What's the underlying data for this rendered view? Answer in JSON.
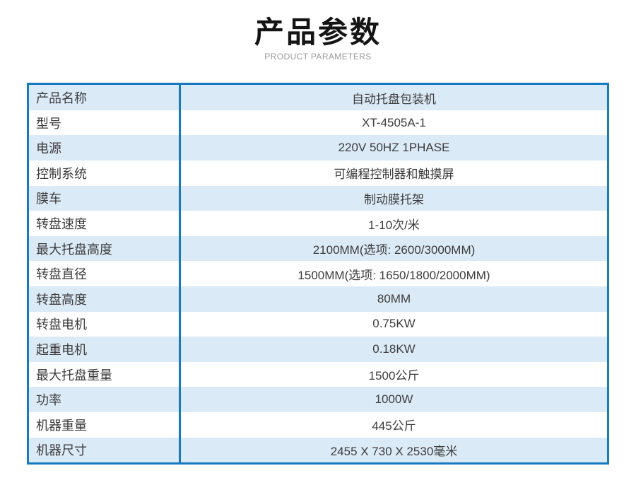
{
  "header": {
    "title": "产品参数",
    "subtitle": "PRODUCT PARAMETERS"
  },
  "table": {
    "rows": [
      {
        "label": "产品名称",
        "value": "自动托盘包装机"
      },
      {
        "label": "型号",
        "value": "XT-4505A-1"
      },
      {
        "label": "电源",
        "value": "220V 50HZ 1PHASE"
      },
      {
        "label": "控制系统",
        "value": "可编程控制器和触摸屏"
      },
      {
        "label": "膜车",
        "value": "制动膜托架"
      },
      {
        "label": "转盘速度",
        "value": "1-10次/米"
      },
      {
        "label": "最大托盘高度",
        "value": "2100MM(选项: 2600/3000MM)"
      },
      {
        "label": "转盘直径",
        "value": "1500MM(选项: 1650/1800/2000MM)"
      },
      {
        "label": "转盘高度",
        "value": "80MM"
      },
      {
        "label": "转盘电机",
        "value": "0.75KW"
      },
      {
        "label": "起重电机",
        "value": "0.18KW"
      },
      {
        "label": "最大托盘重量",
        "value": "1500公斤"
      },
      {
        "label": "功率",
        "value": "1000W"
      },
      {
        "label": "机器重量",
        "value": "445公斤"
      },
      {
        "label": "机器尺寸",
        "value": "2455 X 730 X 2530毫米"
      }
    ]
  },
  "colors": {
    "accent_border": "#1779c0",
    "row_alt_background": "#dbeaf7",
    "text": "#3c3c3c",
    "title_text": "#141414",
    "subtitle_text": "#9a9a9a"
  }
}
